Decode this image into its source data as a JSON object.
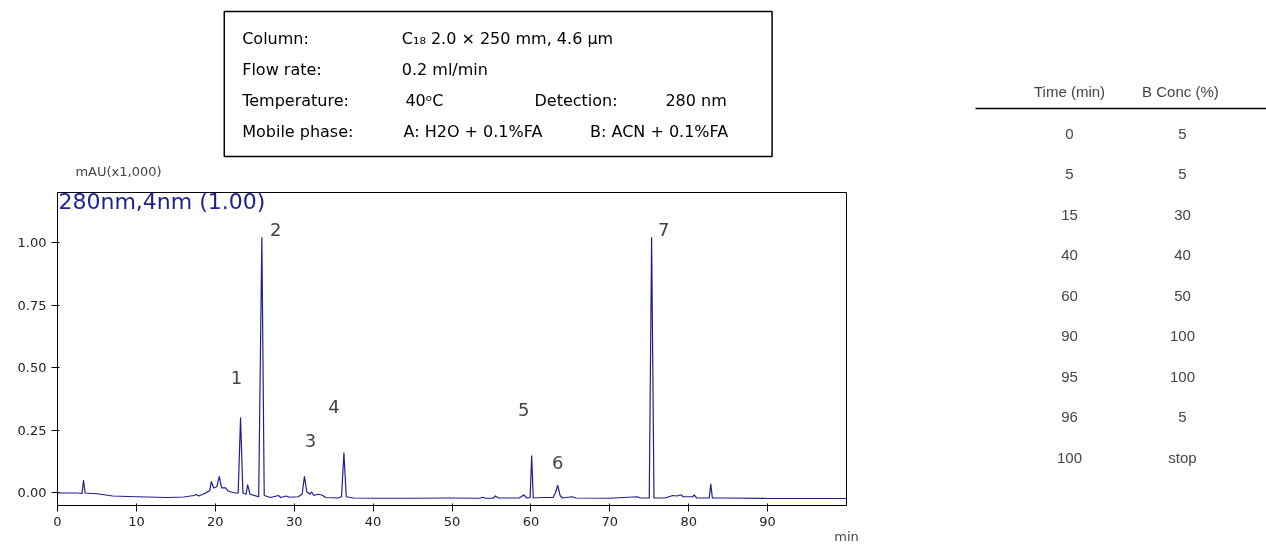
{
  "chart_data": [
    {
      "type": "line",
      "xlabel": "min",
      "ylabel": "mAU(x1,000)",
      "xlim": [
        0,
        100
      ],
      "ylim": [
        -0.05,
        1.2
      ],
      "xticks": [
        0,
        10,
        20,
        30,
        40,
        50,
        60,
        70,
        80,
        90
      ],
      "yticks": [
        {
          "value": 0,
          "label": "0.00"
        },
        {
          "value": 0.25,
          "label": "0.25"
        },
        {
          "value": 0.5,
          "label": "0.50"
        },
        {
          "value": 0.75,
          "label": "0.75"
        },
        {
          "value": 1,
          "label": "1.00"
        }
      ],
      "grid": false,
      "series": [
        {
          "name": "280nm,4nm (1.00)",
          "color": "#1f1f8f",
          "x": [
            0,
            2.5,
            3.1,
            3.3,
            3.5,
            5,
            7,
            10,
            14,
            16,
            17.3,
            17.6,
            17.9,
            18.8,
            19.3,
            19.5,
            19.8,
            20.2,
            20.5,
            20.8,
            21.3,
            21.6,
            22.5,
            22.9,
            23.2,
            23.5,
            23.9,
            24.1,
            24.4,
            25.5,
            25.9,
            26.2,
            27,
            28,
            28.3,
            29,
            29.4,
            30.5,
            31.0,
            31.3,
            31.6,
            32.0,
            32.2,
            32.5,
            33.0,
            33.5,
            34,
            35.5,
            36.0,
            36.3,
            36.6,
            37.5,
            40,
            45,
            49.5,
            53.5,
            53.9,
            54.2,
            55.2,
            55.5,
            55.9,
            58.5,
            59.1,
            59.5,
            59.9,
            60.1,
            60.3,
            61.5,
            62.8,
            63.1,
            63.4,
            63.7,
            64,
            65.2,
            65.7,
            70,
            73.5,
            73.9,
            75.0,
            75.3,
            75.6,
            77,
            78,
            78.5,
            79,
            79.3,
            80.5,
            80.7,
            81,
            82.6,
            82.8,
            83.0,
            84.5,
            90,
            100
          ],
          "values": [
            0.0,
            0.0,
            -0.002,
            0.05,
            0.0,
            -0.003,
            -0.012,
            -0.015,
            -0.018,
            -0.016,
            -0.01,
            -0.006,
            -0.012,
            0.0,
            0.01,
            0.045,
            0.02,
            0.025,
            0.065,
            0.02,
            0.02,
            0.008,
            0.0,
            0.0,
            0.3,
            0.0,
            -0.005,
            0.032,
            -0.005,
            -0.015,
            1.02,
            -0.01,
            -0.018,
            -0.01,
            -0.018,
            -0.012,
            -0.017,
            -0.015,
            -0.005,
            0.065,
            0.005,
            -0.005,
            0.004,
            -0.01,
            -0.005,
            -0.008,
            -0.018,
            -0.02,
            -0.015,
            0.16,
            -0.015,
            -0.02,
            -0.021,
            -0.021,
            -0.02,
            -0.021,
            -0.017,
            -0.021,
            -0.021,
            -0.012,
            -0.02,
            -0.02,
            -0.008,
            -0.02,
            -0.018,
            0.148,
            -0.02,
            -0.018,
            -0.018,
            0.0,
            0.03,
            -0.01,
            -0.02,
            -0.015,
            -0.02,
            -0.021,
            -0.015,
            -0.02,
            -0.02,
            1.02,
            -0.02,
            -0.02,
            -0.01,
            -0.012,
            -0.007,
            -0.015,
            -0.015,
            -0.008,
            -0.02,
            -0.02,
            0.035,
            -0.02,
            -0.02,
            -0.022,
            -0.022
          ]
        }
      ],
      "annotations": [
        "Column:",
        "C₁₈  2.0 × 250 mm, 4.6 µm",
        "Flow rate:",
        "0.2 ml/min",
        "Temperature:",
        "40ᵒC",
        "Detection:",
        "280 nm",
        "Mobile phase:",
        "A: H2O + 0.1%FA",
        "B: ACN + 0.1%FA",
        {
          "text": "1",
          "x": 23.2,
          "y": 0.3
        },
        {
          "text": "2",
          "x": 25.9,
          "y": 1.02
        },
        {
          "text": "3",
          "x": 31.3,
          "y": 0.065
        },
        {
          "text": "4",
          "x": 36.3,
          "y": 0.16
        },
        {
          "text": "5",
          "x": 60.1,
          "y": 0.148
        },
        {
          "text": "6",
          "x": 63.4,
          "y": 0.03
        },
        {
          "text": "7",
          "x": 75.3,
          "y": 1.02
        }
      ]
    },
    {
      "type": "other",
      "annotations": [
        "Time (min)",
        "B Conc  (%)",
        "0",
        "5",
        "5",
        "5",
        "15",
        "30",
        "40",
        "40",
        "60",
        "50",
        "90",
        "100",
        "95",
        "100",
        "96",
        "5",
        "100",
        "stop"
      ]
    }
  ]
}
